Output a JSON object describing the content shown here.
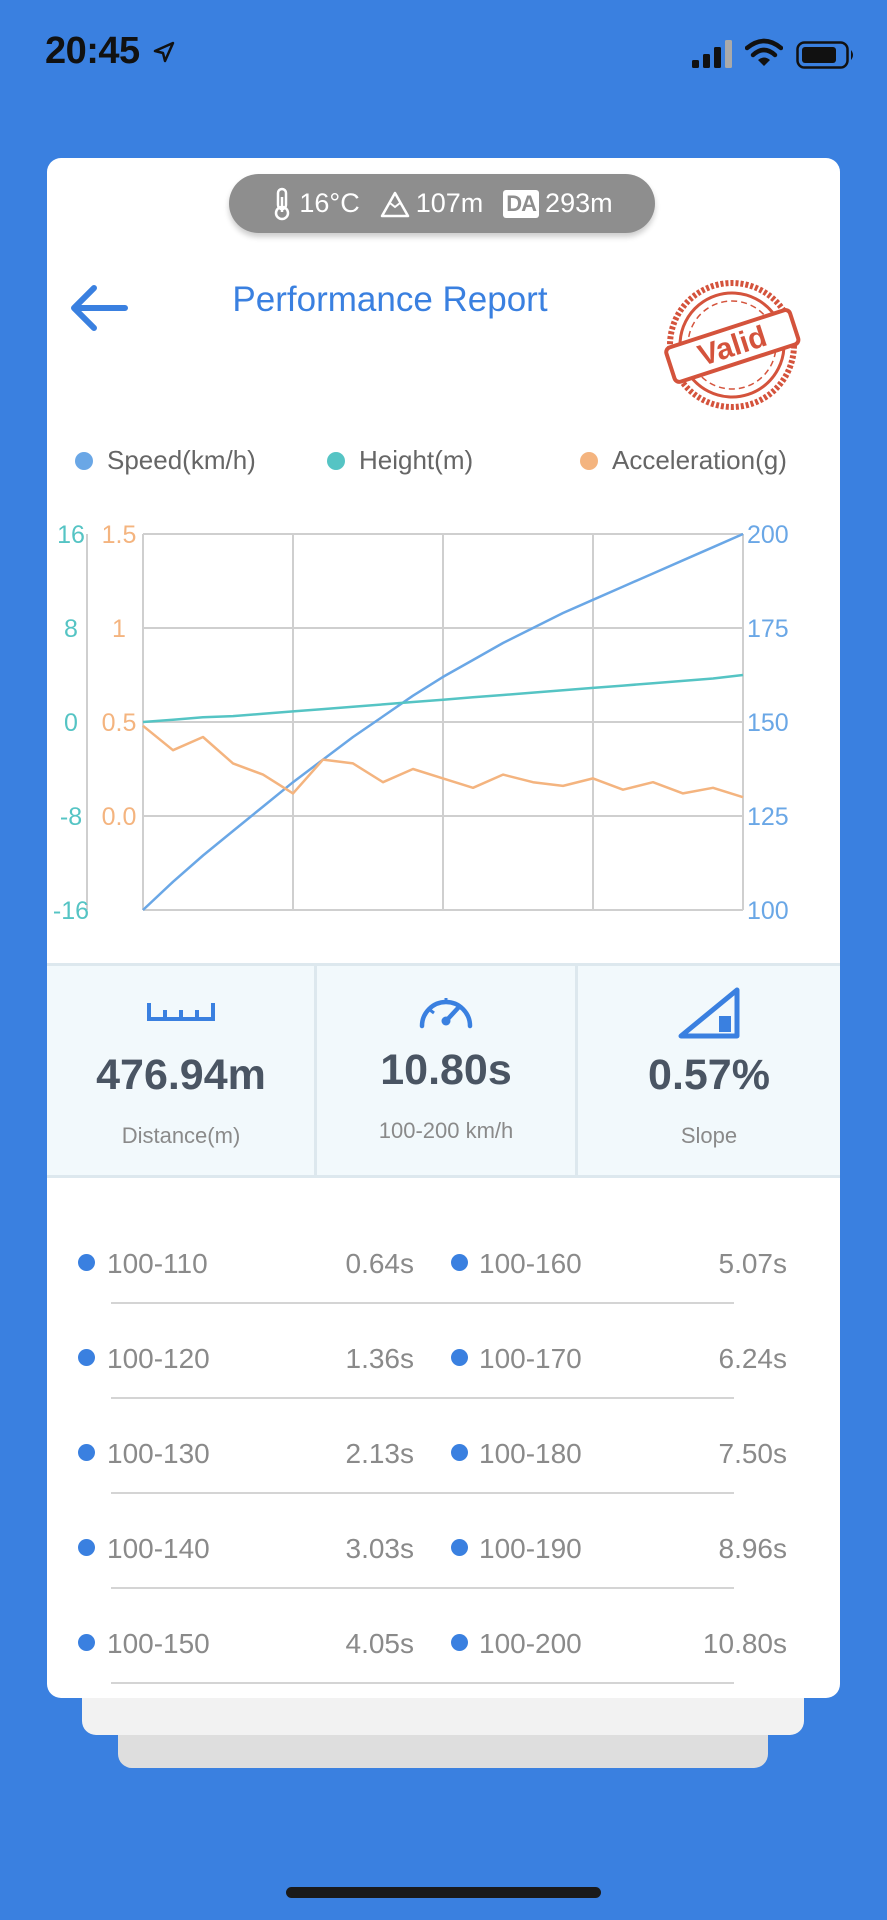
{
  "status": {
    "time": "20:45"
  },
  "environment": {
    "temperature": "16°C",
    "altitude": "107m",
    "da_label": "DA",
    "density_altitude": "293m"
  },
  "header": {
    "title": "Performance Report",
    "stamp_text": "Valid"
  },
  "colors": {
    "accent": "#3a80e0",
    "speed": "#6aa7e6",
    "height": "#55c4c4",
    "acceleration": "#f4b47f"
  },
  "legend": [
    {
      "label": "Speed(km/h)",
      "color": "#6aa7e6"
    },
    {
      "label": "Height(m)",
      "color": "#55c4c4"
    },
    {
      "label": "Acceleration(g)",
      "color": "#f4b47f"
    }
  ],
  "chart_data": {
    "type": "line",
    "grid": true,
    "axes": {
      "height": {
        "ticks": [
          "16",
          "8",
          "0",
          "-8",
          "-16"
        ],
        "range": [
          -16,
          16
        ]
      },
      "acceleration": {
        "ticks": [
          "1.5",
          "1",
          "0.5",
          "0.0"
        ],
        "range": [
          -0.5,
          1.5
        ]
      },
      "speed": {
        "ticks": [
          "200",
          "175",
          "150",
          "125",
          "100"
        ],
        "range": [
          100,
          200
        ]
      }
    },
    "x": [
      0,
      1,
      2,
      3,
      4,
      5,
      6,
      7,
      8,
      9,
      10,
      11,
      12,
      13,
      14,
      15,
      16,
      17,
      18,
      19,
      20
    ],
    "series": [
      {
        "name": "Speed(km/h)",
        "axis": "speed",
        "color": "#6aa7e6",
        "values": [
          100,
          107.5,
          114.5,
          121,
          127.5,
          134,
          140,
          146,
          151.5,
          157,
          162,
          166.5,
          171,
          175,
          179,
          182.5,
          186,
          189.5,
          193,
          196.5,
          200
        ]
      },
      {
        "name": "Height(m)",
        "axis": "height",
        "color": "#55c4c4",
        "values": [
          0,
          0.2,
          0.4,
          0.5,
          0.7,
          0.9,
          1.1,
          1.3,
          1.5,
          1.7,
          1.9,
          2.1,
          2.3,
          2.5,
          2.7,
          2.9,
          3.1,
          3.3,
          3.5,
          3.7,
          4.0
        ]
      },
      {
        "name": "Acceleration(g)",
        "axis": "acceleration",
        "color": "#f4b47f",
        "values": [
          0.48,
          0.35,
          0.42,
          0.28,
          0.22,
          0.12,
          0.3,
          0.28,
          0.18,
          0.25,
          0.2,
          0.15,
          0.22,
          0.18,
          0.16,
          0.2,
          0.14,
          0.18,
          0.12,
          0.15,
          0.1
        ]
      }
    ]
  },
  "stats": [
    {
      "value": "476.94m",
      "label": "Distance(m)",
      "icon": "ruler-icon"
    },
    {
      "value": "10.80s",
      "label": "100-200 km/h",
      "icon": "speedometer-icon"
    },
    {
      "value": "0.57%",
      "label": "Slope",
      "icon": "slope-icon"
    }
  ],
  "splits": [
    [
      {
        "range": "100-110",
        "time": "0.64s"
      },
      {
        "range": "100-160",
        "time": "5.07s"
      }
    ],
    [
      {
        "range": "100-120",
        "time": "1.36s"
      },
      {
        "range": "100-170",
        "time": "6.24s"
      }
    ],
    [
      {
        "range": "100-130",
        "time": "2.13s"
      },
      {
        "range": "100-180",
        "time": "7.50s"
      }
    ],
    [
      {
        "range": "100-140",
        "time": "3.03s"
      },
      {
        "range": "100-190",
        "time": "8.96s"
      }
    ],
    [
      {
        "range": "100-150",
        "time": "4.05s"
      },
      {
        "range": "100-200",
        "time": "10.80s"
      }
    ]
  ]
}
